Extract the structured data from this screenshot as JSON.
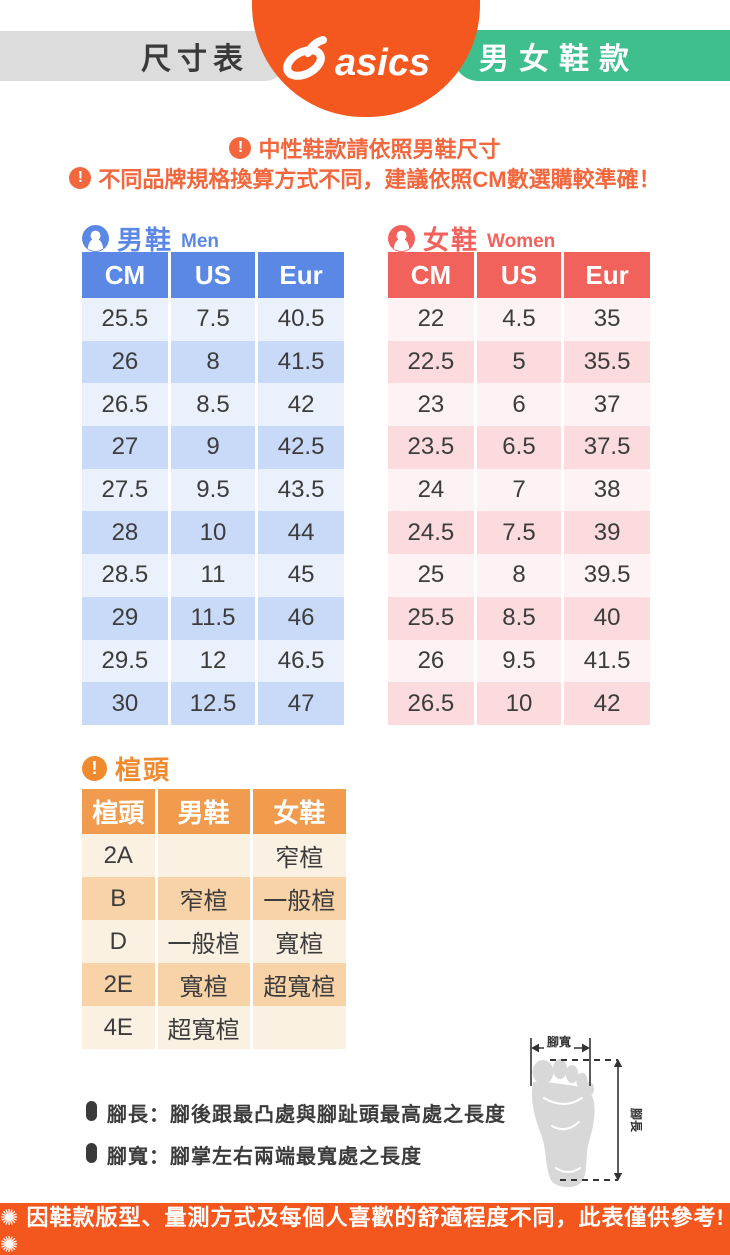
{
  "header": {
    "left_pill": "尺寸表",
    "brand": "asics",
    "right_pill": "男女鞋款"
  },
  "notices": [
    "中性鞋款請依照男鞋尺寸",
    "不同品牌規格換算方式不同，建議依照CM數選購較準確！"
  ],
  "men_table": {
    "title": "男鞋",
    "title_en": "Men",
    "columns": [
      "CM",
      "US",
      "Eur"
    ],
    "rows": [
      [
        "25.5",
        "7.5",
        "40.5"
      ],
      [
        "26",
        "8",
        "41.5"
      ],
      [
        "26.5",
        "8.5",
        "42"
      ],
      [
        "27",
        "9",
        "42.5"
      ],
      [
        "27.5",
        "9.5",
        "43.5"
      ],
      [
        "28",
        "10",
        "44"
      ],
      [
        "28.5",
        "11",
        "45"
      ],
      [
        "29",
        "11.5",
        "46"
      ],
      [
        "29.5",
        "12",
        "46.5"
      ],
      [
        "30",
        "12.5",
        "47"
      ]
    ]
  },
  "women_table": {
    "title": "女鞋",
    "title_en": "Women",
    "columns": [
      "CM",
      "US",
      "Eur"
    ],
    "rows": [
      [
        "22",
        "4.5",
        "35"
      ],
      [
        "22.5",
        "5",
        "35.5"
      ],
      [
        "23",
        "6",
        "37"
      ],
      [
        "23.5",
        "6.5",
        "37.5"
      ],
      [
        "24",
        "7",
        "38"
      ],
      [
        "24.5",
        "7.5",
        "39"
      ],
      [
        "25",
        "8",
        "39.5"
      ],
      [
        "25.5",
        "8.5",
        "40"
      ],
      [
        "26",
        "9.5",
        "41.5"
      ],
      [
        "26.5",
        "10",
        "42"
      ]
    ]
  },
  "width_table": {
    "title": "楦頭",
    "columns": [
      "楦頭",
      "男鞋",
      "女鞋"
    ],
    "rows": [
      [
        "2A",
        "",
        "窄楦"
      ],
      [
        "B",
        "窄楦",
        "一般楦"
      ],
      [
        "D",
        "一般楦",
        "寬楦"
      ],
      [
        "2E",
        "寬楦",
        "超寬楦"
      ],
      [
        "4E",
        "超寬楦",
        ""
      ]
    ]
  },
  "notes": [
    "腳長：腳後跟最凸處與腳趾頭最高處之長度",
    "腳寬：腳掌左右兩端最寬處之長度"
  ],
  "diagram": {
    "width_label": "腳寬",
    "length_label": "腳長"
  },
  "footer": "✺ 因鞋款版型、量測方式及每個人喜歡的舒適程度不同，此表僅供參考! ✺",
  "icons": {
    "notice": "exclamation-circle-icon",
    "men": "user-icon",
    "women": "user-icon",
    "width": "exclamation-circle-icon"
  },
  "colors": {
    "brand_orange": "#f4581e",
    "green": "#3fbf8e",
    "gray_pill": "#dcdcdc",
    "men_blue": "#5c88e5",
    "women_coral": "#f2625d",
    "width_orange": "#f09b4d",
    "notice_orange": "#f2673d"
  }
}
